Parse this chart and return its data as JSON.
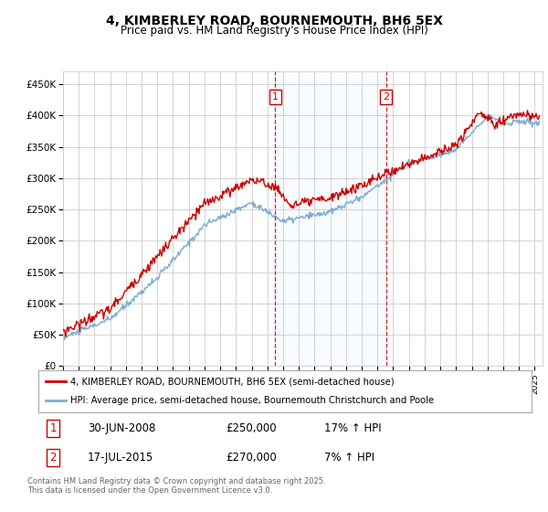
{
  "title": "4, KIMBERLEY ROAD, BOURNEMOUTH, BH6 5EX",
  "subtitle": "Price paid vs. HM Land Registry's House Price Index (HPI)",
  "legend_line1": "4, KIMBERLEY ROAD, BOURNEMOUTH, BH6 5EX (semi-detached house)",
  "legend_line2": "HPI: Average price, semi-detached house, Bournemouth Christchurch and Poole",
  "sale1_label": "1",
  "sale1_date": "30-JUN-2008",
  "sale1_price": "£250,000",
  "sale1_hpi": "17% ↑ HPI",
  "sale1_year": 2008.5,
  "sale1_value": 250000,
  "sale2_label": "2",
  "sale2_date": "17-JUL-2015",
  "sale2_price": "£270,000",
  "sale2_hpi": "7% ↑ HPI",
  "sale2_year": 2015.54,
  "sale2_value": 270000,
  "shaded_region_start": 2008.5,
  "shaded_region_end": 2015.54,
  "ylim": [
    0,
    470000
  ],
  "xlim_start": 1995,
  "xlim_end": 2025.5,
  "background_color": "#ffffff",
  "plot_bg_color": "#ffffff",
  "grid_color": "#cccccc",
  "red_color": "#cc0000",
  "blue_color": "#7aadd4",
  "shade_color": "#ddeeff",
  "footnote": "Contains HM Land Registry data © Crown copyright and database right 2025.\nThis data is licensed under the Open Government Licence v3.0."
}
